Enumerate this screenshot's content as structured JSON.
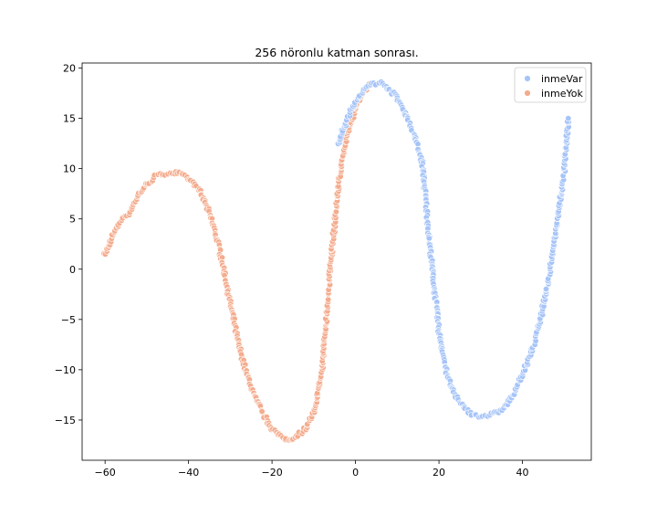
{
  "chart_data": {
    "type": "scatter",
    "title": "256 nöronlu katman sonrası.",
    "xlabel": "",
    "ylabel": "",
    "xlim": [
      -65.5,
      56.5
    ],
    "ylim": [
      -19,
      20.5
    ],
    "xticks": [
      -60,
      -40,
      -20,
      0,
      20,
      40
    ],
    "yticks": [
      -15,
      -10,
      -5,
      0,
      5,
      10,
      15,
      20
    ],
    "grid": false,
    "legend_position": "top-right",
    "legend": [
      "inmeVar",
      "inmeYok"
    ],
    "colors": {
      "inmeVar": "#a6c4f8",
      "inmeYok": "#f4ac8e"
    },
    "curve_model": "y = 18*sin((x+15.5)*pi/41) - 0.07*max(0, x-35)^2",
    "series": [
      {
        "name": "inmeYok",
        "x": [
          -60,
          -58,
          -56,
          -54,
          -52,
          -50,
          -48,
          -46,
          -44,
          -42,
          -40,
          -38,
          -36,
          -34,
          -32,
          -30,
          -28,
          -26,
          -24,
          -22,
          -20,
          -18,
          -16,
          -14,
          -12,
          -10,
          -8,
          -6,
          -4,
          -2,
          0,
          2,
          4
        ],
        "y": [
          1.4,
          3.6,
          5.0,
          5.7,
          7.5,
          8.4,
          9.2,
          9.5,
          9.6,
          9.5,
          9.0,
          8.2,
          6.6,
          4.3,
          1.0,
          -3.5,
          -7.5,
          -10.5,
          -12.8,
          -14.5,
          -15.8,
          -16.7,
          -17.0,
          -16.6,
          -15.8,
          -14.3,
          -10.0,
          0.3,
          8.8,
          13.5,
          16.0,
          17.7,
          18.5
        ]
      },
      {
        "name": "inmeVar",
        "x": [
          -4,
          -2,
          0,
          2,
          4,
          6,
          8,
          10,
          12,
          14,
          16,
          18,
          20,
          22,
          24,
          26,
          28,
          30,
          32,
          34,
          36,
          38,
          40,
          42,
          44,
          46,
          48,
          50,
          51
        ],
        "y": [
          12.5,
          15.0,
          16.6,
          17.8,
          18.5,
          18.5,
          18.0,
          17.0,
          15.5,
          13.4,
          10.6,
          1.5,
          -6.2,
          -10.7,
          -12.7,
          -13.8,
          -14.4,
          -14.6,
          -14.5,
          -14.3,
          -13.5,
          -12.4,
          -10.5,
          -8.5,
          -5.6,
          -1.6,
          3.5,
          9.8,
          15.0
        ]
      }
    ]
  }
}
